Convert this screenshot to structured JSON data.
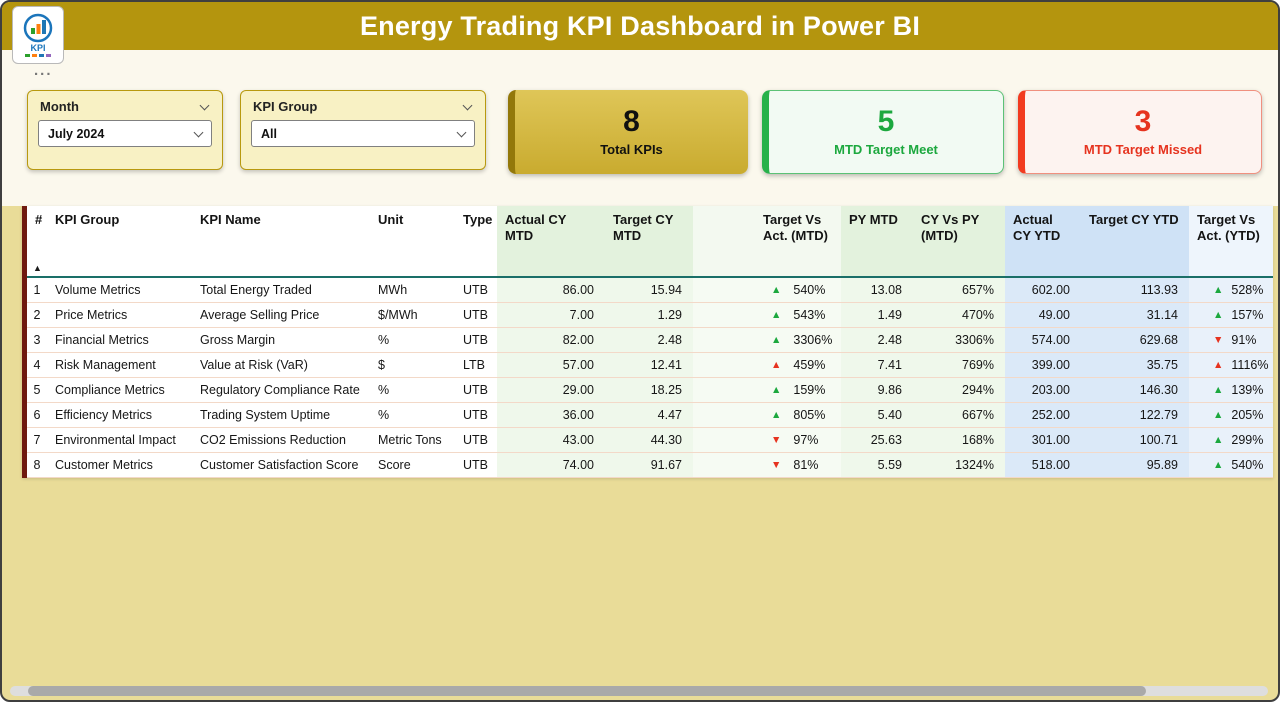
{
  "header": {
    "title": "Energy Trading KPI Dashboard in Power BI",
    "logo": "KPI"
  },
  "more_options": "...",
  "slicers": {
    "month": {
      "label": "Month",
      "value": "July 2024"
    },
    "kpi_group": {
      "label": "KPI Group",
      "value": "All"
    }
  },
  "cards": {
    "total": {
      "value": "8",
      "label": "Total KPIs"
    },
    "meet": {
      "value": "5",
      "label": "MTD Target Meet"
    },
    "missed": {
      "value": "3",
      "label": "MTD Target Missed"
    }
  },
  "table": {
    "columns": [
      "#",
      "KPI Group",
      "KPI Name",
      "Unit",
      "Type",
      "Actual CY MTD",
      "Target CY MTD",
      "Target Vs Act. (MTD)",
      "PY MTD",
      "CY Vs PY (MTD)",
      "Actual CY YTD",
      "Target CY YTD",
      "Target Vs Act. (YTD)"
    ],
    "rows": [
      {
        "n": "1",
        "group": "Volume Metrics",
        "name": "Total Energy Traded",
        "unit": "MWh",
        "type": "UTB",
        "actual_mtd": "86.00",
        "target_mtd": "15.94",
        "tva_mtd": {
          "arrow": "up",
          "tone": "good",
          "value": "540%"
        },
        "py_mtd": "13.08",
        "cy_vs_py": "657%",
        "actual_ytd": "602.00",
        "target_ytd": "113.93",
        "tva_ytd": {
          "arrow": "up",
          "tone": "good",
          "value": "528%"
        }
      },
      {
        "n": "2",
        "group": "Price Metrics",
        "name": "Average Selling Price",
        "unit": "$/MWh",
        "type": "UTB",
        "actual_mtd": "7.00",
        "target_mtd": "1.29",
        "tva_mtd": {
          "arrow": "up",
          "tone": "good",
          "value": "543%"
        },
        "py_mtd": "1.49",
        "cy_vs_py": "470%",
        "actual_ytd": "49.00",
        "target_ytd": "31.14",
        "tva_ytd": {
          "arrow": "up",
          "tone": "good",
          "value": "157%"
        }
      },
      {
        "n": "3",
        "group": "Financial Metrics",
        "name": "Gross Margin",
        "unit": "%",
        "type": "UTB",
        "actual_mtd": "82.00",
        "target_mtd": "2.48",
        "tva_mtd": {
          "arrow": "up",
          "tone": "good",
          "value": "3306%"
        },
        "py_mtd": "2.48",
        "cy_vs_py": "3306%",
        "actual_ytd": "574.00",
        "target_ytd": "629.68",
        "tva_ytd": {
          "arrow": "down",
          "tone": "bad",
          "value": "91%"
        }
      },
      {
        "n": "4",
        "group": "Risk Management",
        "name": "Value at Risk (VaR)",
        "unit": "$",
        "type": "LTB",
        "actual_mtd": "57.00",
        "target_mtd": "12.41",
        "tva_mtd": {
          "arrow": "up",
          "tone": "bad",
          "value": "459%"
        },
        "py_mtd": "7.41",
        "cy_vs_py": "769%",
        "actual_ytd": "399.00",
        "target_ytd": "35.75",
        "tva_ytd": {
          "arrow": "up",
          "tone": "bad",
          "value": "1116%"
        }
      },
      {
        "n": "5",
        "group": "Compliance Metrics",
        "name": "Regulatory Compliance Rate",
        "unit": "%",
        "type": "UTB",
        "actual_mtd": "29.00",
        "target_mtd": "18.25",
        "tva_mtd": {
          "arrow": "up",
          "tone": "good",
          "value": "159%"
        },
        "py_mtd": "9.86",
        "cy_vs_py": "294%",
        "actual_ytd": "203.00",
        "target_ytd": "146.30",
        "tva_ytd": {
          "arrow": "up",
          "tone": "good",
          "value": "139%"
        }
      },
      {
        "n": "6",
        "group": "Efficiency Metrics",
        "name": "Trading System Uptime",
        "unit": "%",
        "type": "UTB",
        "actual_mtd": "36.00",
        "target_mtd": "4.47",
        "tva_mtd": {
          "arrow": "up",
          "tone": "good",
          "value": "805%"
        },
        "py_mtd": "5.40",
        "cy_vs_py": "667%",
        "actual_ytd": "252.00",
        "target_ytd": "122.79",
        "tva_ytd": {
          "arrow": "up",
          "tone": "good",
          "value": "205%"
        }
      },
      {
        "n": "7",
        "group": "Environmental Impact",
        "name": "CO2 Emissions Reduction",
        "unit": "Metric Tons",
        "type": "UTB",
        "actual_mtd": "43.00",
        "target_mtd": "44.30",
        "tva_mtd": {
          "arrow": "down",
          "tone": "bad",
          "value": "97%"
        },
        "py_mtd": "25.63",
        "cy_vs_py": "168%",
        "actual_ytd": "301.00",
        "target_ytd": "100.71",
        "tva_ytd": {
          "arrow": "up",
          "tone": "good",
          "value": "299%"
        }
      },
      {
        "n": "8",
        "group": "Customer Metrics",
        "name": "Customer Satisfaction Score",
        "unit": "Score",
        "type": "UTB",
        "actual_mtd": "74.00",
        "target_mtd": "91.67",
        "tva_mtd": {
          "arrow": "down",
          "tone": "bad",
          "value": "81%"
        },
        "py_mtd": "5.59",
        "cy_vs_py": "1324%",
        "actual_ytd": "518.00",
        "target_ytd": "95.89",
        "tva_ytd": {
          "arrow": "up",
          "tone": "good",
          "value": "540%"
        }
      }
    ]
  },
  "colors": {
    "header_gold": "#b4950e",
    "good": "#1ca83e",
    "bad": "#e6331f",
    "maroon_bar": "#6f1a10"
  }
}
